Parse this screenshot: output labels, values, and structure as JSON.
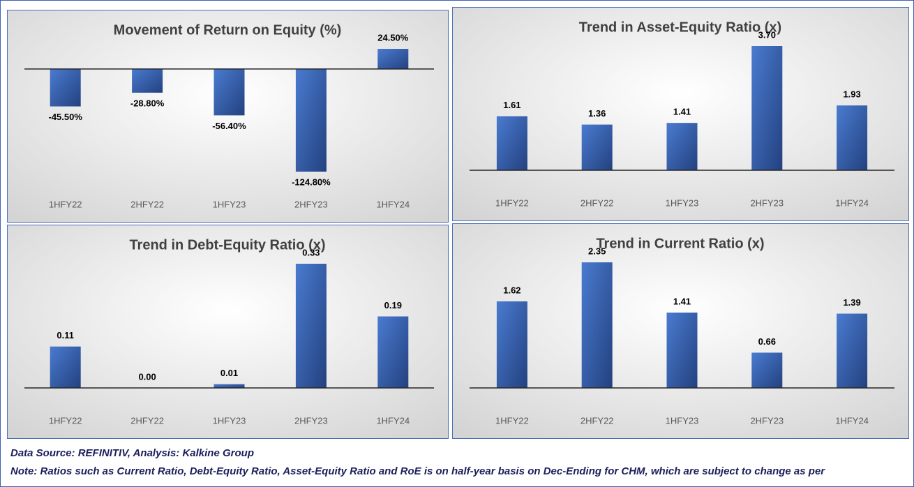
{
  "chart_data": [
    {
      "type": "bar",
      "title": "Movement of Return on Equity (%)",
      "categories": [
        "1HFY22",
        "2HFY22",
        "1HFY23",
        "2HFY23",
        "1HFY24"
      ],
      "values": [
        -45.5,
        -28.8,
        -56.4,
        -124.8,
        24.5
      ],
      "value_labels": [
        "-45.50%",
        "-28.80%",
        "-56.40%",
        "-124.80%",
        "24.50%"
      ],
      "color": "#4a7bd0"
    },
    {
      "type": "bar",
      "title": "Trend in Asset-Equity Ratio (x)",
      "categories": [
        "1HFY22",
        "2HFY22",
        "1HFY23",
        "2HFY23",
        "1HFY24"
      ],
      "values": [
        1.61,
        1.36,
        1.41,
        3.7,
        1.93
      ],
      "value_labels": [
        "1.61",
        "1.36",
        "1.41",
        "3.70",
        "1.93"
      ],
      "color": "#4a7bd0"
    },
    {
      "type": "bar",
      "title": "Trend in Debt-Equity Ratio (x)",
      "categories": [
        "1HFY22",
        "2HFY22",
        "1HFY23",
        "2HFY23",
        "1HFY24"
      ],
      "values": [
        0.11,
        0,
        0.01,
        0.33,
        0.19
      ],
      "value_labels": [
        "0.11",
        "0.00",
        "0.01",
        "0.33",
        "0.19"
      ],
      "color": "#4a7bd0"
    },
    {
      "type": "bar",
      "title": "Trend in Current Ratio (x)",
      "categories": [
        "1HFY22",
        "2HFY22",
        "1HFY23",
        "2HFY23",
        "1HFY24"
      ],
      "values": [
        1.62,
        2.35,
        1.41,
        0.66,
        1.39
      ],
      "value_labels": [
        "1.62",
        "2.35",
        "1.41",
        "0.66",
        "1.39"
      ],
      "color": "#4a7bd0"
    }
  ],
  "footer": {
    "source": "Data Source: REFINITIV, Analysis: Kalkine Group",
    "note": "Note: Ratios such as Current Ratio, Debt-Equity Ratio, Asset-Equity Ratio and RoE is on half-year basis on Dec-Ending for CHM, which are subject to change as per"
  }
}
